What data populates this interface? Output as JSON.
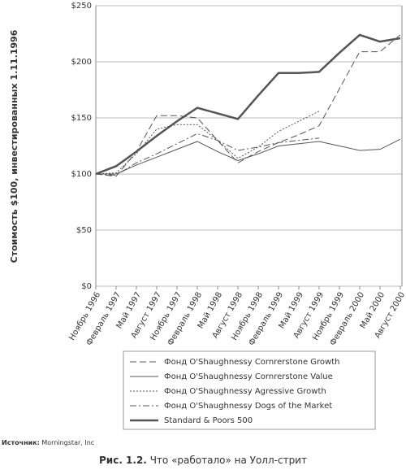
{
  "chart_data": {
    "type": "line",
    "y_label": "Стоимость $100, инвестированных 1.11.1996",
    "categories": [
      "Ноябрь 1996",
      "Февраль 1997",
      "Май 1997",
      "Август 1997",
      "Ноябрь 1997",
      "Февраль 1998",
      "Май 1998",
      "Август 1998",
      "Ноябрь 1998",
      "Февраль 1999",
      "Май 1999",
      "Август 1999",
      "Ноябрь 1999",
      "Февраль 2000",
      "Май 2000",
      "Август 2000"
    ],
    "series": [
      {
        "name": "Фонд O'Shaughnessy Cornrerstone Growth",
        "color": "#555555",
        "dash": "8,4",
        "width": 1,
        "values": [
          100,
          98,
          120,
          152,
          152,
          150,
          130,
          110,
          120,
          128,
          135,
          143,
          176,
          209,
          209,
          224
        ]
      },
      {
        "name": "Фонд O'Shaughnessy Cornrerstone Value",
        "color": "#555555",
        "dash": "none",
        "width": 1,
        "values": [
          100,
          100,
          108,
          115,
          122,
          129,
          120,
          112,
          118,
          125,
          127,
          129,
          125,
          121,
          122,
          131
        ]
      },
      {
        "name": "Фонд O'Shaughnessy Agressive Growth",
        "color": "#555555",
        "dash": "2,2",
        "width": 1,
        "values": [
          100,
          101,
          118,
          140,
          144,
          144,
          130,
          114,
          124,
          138,
          147,
          156,
          null,
          null,
          null,
          null
        ]
      },
      {
        "name": "Фонд O'Shaughnessy Dogs of the Market",
        "color": "#555555",
        "dash": "8,3,2,3",
        "width": 1,
        "values": [
          100,
          99,
          110,
          118,
          127,
          136,
          130,
          121,
          124,
          128,
          130,
          132,
          null,
          null,
          null,
          null
        ]
      },
      {
        "name": "Standard & Poors 500",
        "color": "#555555",
        "dash": "none",
        "width": 2.5,
        "values": [
          100,
          107,
          120,
          134,
          147,
          159,
          154,
          149,
          170,
          190,
          190,
          191,
          208,
          224,
          218,
          221
        ]
      }
    ],
    "ylim": [
      0,
      250
    ],
    "yticks": [
      {
        "value": 0,
        "label": "$0"
      },
      {
        "value": 50,
        "label": "$50"
      },
      {
        "value": 100,
        "label": "$100"
      },
      {
        "value": 150,
        "label": "$150"
      },
      {
        "value": 200,
        "label": "$200"
      },
      {
        "value": 250,
        "label": "$250"
      }
    ],
    "grid": true,
    "source_label": "Источник:",
    "source": "Morningstar, Inc",
    "caption_label": "Рис. 1.2.",
    "caption": "Что «работало» на Уолл-стрит"
  }
}
